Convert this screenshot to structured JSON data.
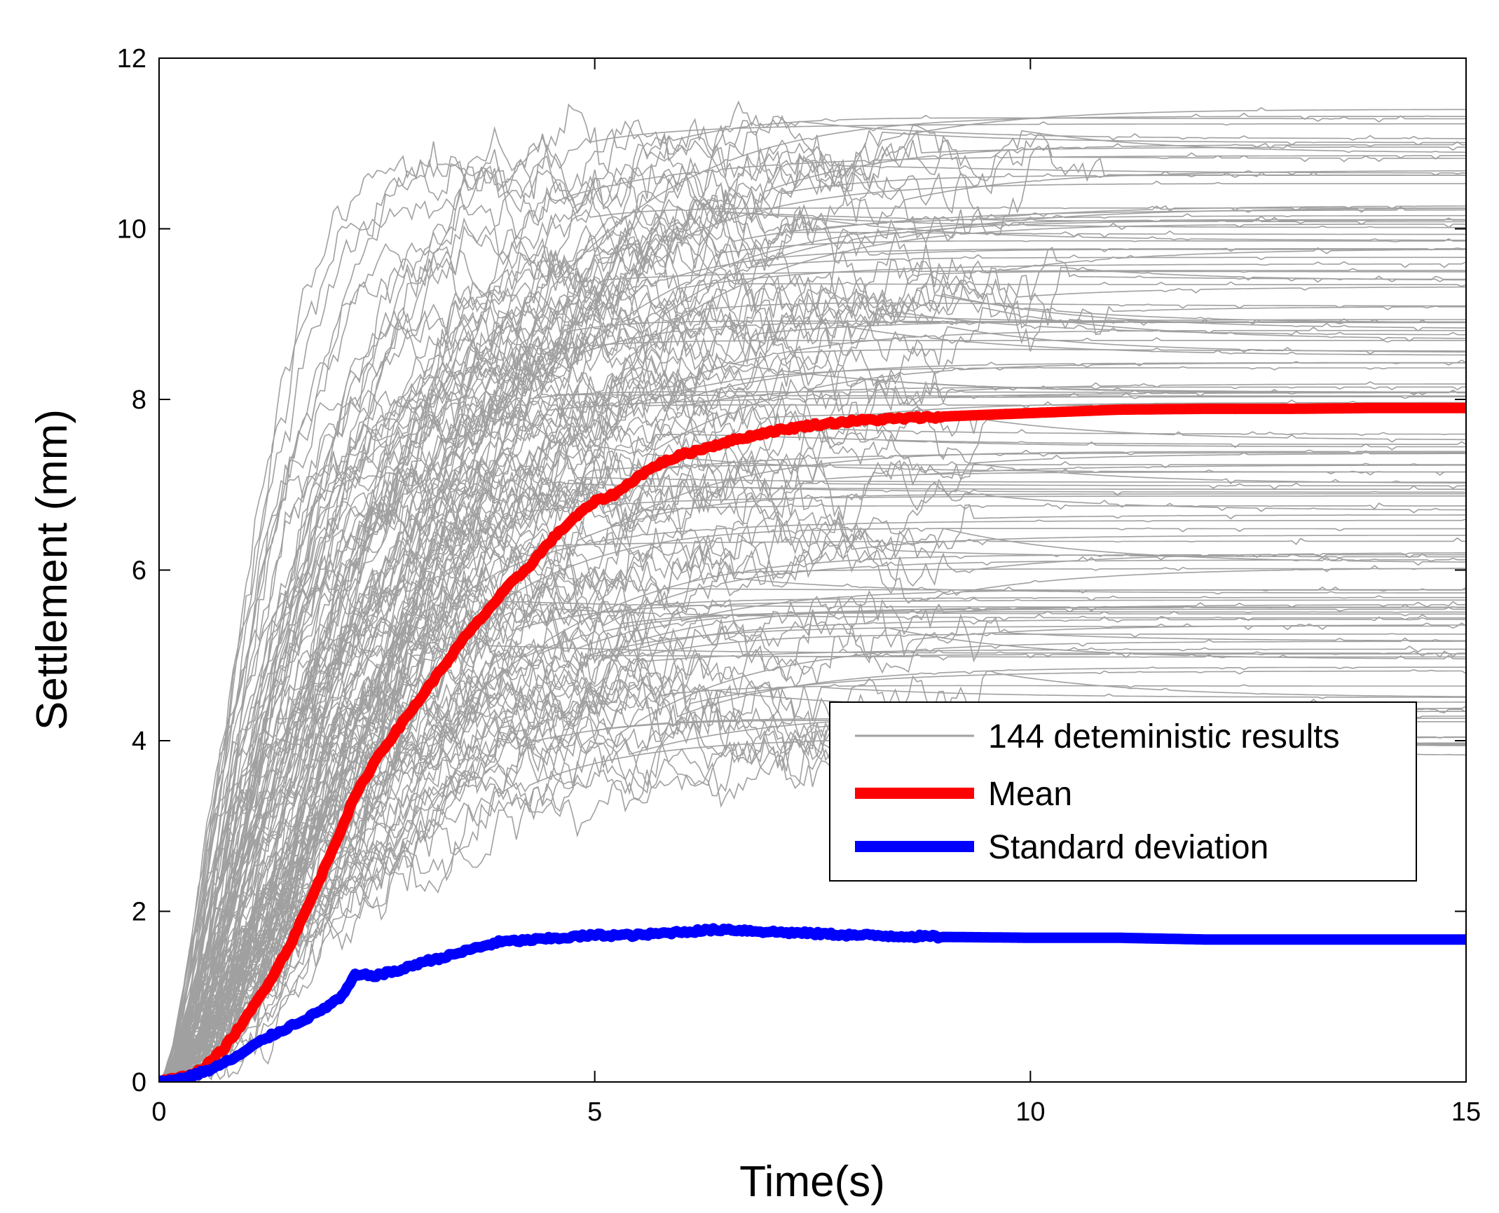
{
  "chart_data": {
    "type": "line",
    "title": "",
    "xlabel": "Time(s)",
    "ylabel": "Settlement (mm)",
    "xlim": [
      0,
      15
    ],
    "ylim": [
      0,
      12
    ],
    "xticks": [
      0,
      5,
      10,
      15
    ],
    "yticks": [
      0,
      2,
      4,
      6,
      8,
      10,
      12
    ],
    "xtick_labels": [
      "0",
      "5",
      "10",
      "15"
    ],
    "ytick_labels": [
      "0",
      "2",
      "4",
      "6",
      "8",
      "10",
      "12"
    ],
    "grid": false,
    "legend_position": "right",
    "legend": [
      {
        "label": "144 deteministic results",
        "color": "#a0a0a0"
      },
      {
        "label": "Mean",
        "color": "#ff0000"
      },
      {
        "label": "Standard deviation",
        "color": "#0000ff"
      }
    ],
    "realizations": {
      "count": 144,
      "name": "144 deteministic results",
      "color": "#a0a0a0",
      "final_values_range": [
        3.8,
        11.4
      ],
      "peak_observed": 11.7
    },
    "series": [
      {
        "name": "Mean",
        "color": "#ff0000",
        "x": [
          0,
          0.25,
          0.5,
          0.75,
          1.0,
          1.25,
          1.5,
          1.75,
          2.0,
          2.25,
          2.5,
          2.75,
          3.0,
          3.25,
          3.5,
          3.75,
          4.0,
          4.25,
          4.5,
          4.75,
          5.0,
          5.25,
          5.5,
          5.75,
          6.0,
          6.5,
          7.0,
          7.5,
          8.0,
          9.0,
          10.0,
          11.0,
          12.0,
          13.0,
          14.0,
          15.0
        ],
        "values": [
          0,
          0.05,
          0.15,
          0.4,
          0.75,
          1.15,
          1.6,
          2.15,
          2.75,
          3.35,
          3.8,
          4.15,
          4.5,
          4.85,
          5.2,
          5.5,
          5.8,
          6.05,
          6.35,
          6.6,
          6.8,
          6.9,
          7.1,
          7.25,
          7.35,
          7.5,
          7.62,
          7.7,
          7.75,
          7.8,
          7.84,
          7.88,
          7.89,
          7.89,
          7.9,
          7.9
        ]
      },
      {
        "name": "Standard deviation",
        "color": "#0000ff",
        "x": [
          0,
          0.3,
          0.6,
          0.9,
          1.2,
          1.5,
          1.8,
          2.1,
          2.25,
          2.5,
          2.8,
          3.0,
          3.3,
          3.6,
          3.9,
          4.2,
          4.5,
          5.0,
          5.5,
          6.0,
          6.5,
          7.0,
          7.5,
          8.0,
          9.0,
          10.0,
          11.0,
          12.0,
          13.0,
          14.0,
          15.0
        ],
        "values": [
          0,
          0.05,
          0.15,
          0.3,
          0.5,
          0.65,
          0.8,
          1.0,
          1.25,
          1.25,
          1.32,
          1.4,
          1.47,
          1.56,
          1.64,
          1.66,
          1.68,
          1.72,
          1.72,
          1.76,
          1.79,
          1.76,
          1.74,
          1.72,
          1.7,
          1.69,
          1.69,
          1.67,
          1.67,
          1.67,
          1.67
        ]
      }
    ]
  }
}
